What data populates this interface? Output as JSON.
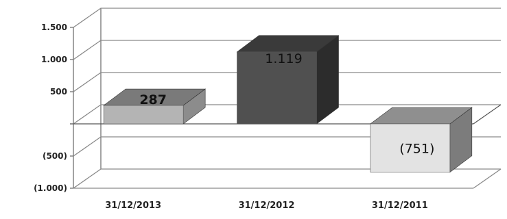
{
  "chart_data": {
    "type": "bar",
    "style": "3d-column",
    "categories": [
      "31/12/2013",
      "31/12/2012",
      "31/12/2011"
    ],
    "values": [
      287,
      1119,
      -751
    ],
    "data_labels": [
      "287",
      "1.119",
      "(751)"
    ],
    "y_ticks": [
      {
        "value": 1500,
        "label": "1.500"
      },
      {
        "value": 1000,
        "label": "1.000"
      },
      {
        "value": 500,
        "label": "500"
      },
      {
        "value": 0,
        "label": ""
      },
      {
        "value": -500,
        "label": "(500)"
      },
      {
        "value": -1000,
        "label": "(1.000)"
      }
    ],
    "ylim": [
      -1000,
      1500
    ],
    "grid": true,
    "legend": "none",
    "colors": {
      "bar_2013": {
        "front": "#b4b4b4",
        "top": "#7a7a7a",
        "side": "#8c8c8c"
      },
      "bar_2012": {
        "front": "#505050",
        "top": "#3a3a3a",
        "side": "#2c2c2c"
      },
      "bar_2011": {
        "front": "#e3e3e3",
        "top": "#8f8f8f",
        "side": "#7c7c7c"
      }
    }
  }
}
